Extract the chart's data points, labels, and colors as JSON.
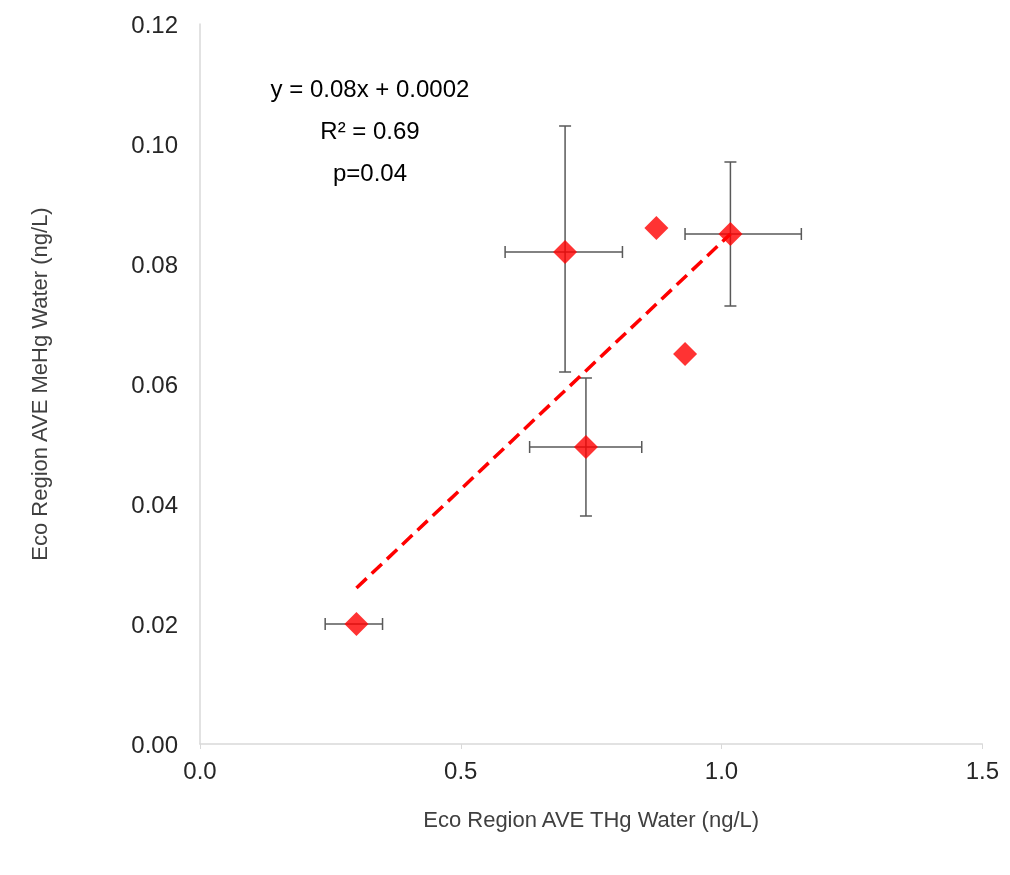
{
  "chart_data": {
    "type": "scatter",
    "xlabel": "Eco Region AVE THg Water (ng/L)",
    "ylabel": "Eco Region AVE MeHg Water (ng/L)",
    "xlim": [
      0,
      1.5
    ],
    "xticks": [
      {
        "value": 0,
        "label": "0.0"
      },
      {
        "value": 0.5,
        "label": "0.5"
      },
      {
        "value": 1,
        "label": "1.0"
      },
      {
        "value": 1.5,
        "label": "1.5"
      }
    ],
    "ylim": [
      0,
      0.12
    ],
    "yticks": [
      {
        "value": 0,
        "label": "0.00"
      },
      {
        "value": 0.02,
        "label": "0.02"
      },
      {
        "value": 0.04,
        "label": "0.04"
      },
      {
        "value": 0.06,
        "label": "0.06"
      },
      {
        "value": 0.08,
        "label": "0.08"
      },
      {
        "value": 0.1,
        "label": "0.10"
      },
      {
        "value": 0.12,
        "label": "0.12"
      }
    ],
    "grid": false,
    "marker": "diamond",
    "annotations": [
      "y = 0.08x + 0.0002",
      "R² = 0.69",
      "p=0.04"
    ],
    "series": [
      {
        "color": "#ff0000",
        "x": [
          0.3,
          0.7,
          0.875,
          1.017,
          0.93,
          0.74
        ],
        "values": [
          0.02,
          0.082,
          0.086,
          0.085,
          0.065,
          0.0495
        ],
        "errors": [
          null,
          [
            0.062,
            0.103
          ],
          null,
          [
            0.073,
            0.097
          ],
          null,
          [
            0.038,
            0.061
          ]
        ],
        "xerrors": [
          [
            0.24,
            0.35
          ],
          [
            0.585,
            0.81
          ],
          null,
          [
            0.93,
            1.153
          ],
          null,
          [
            0.632,
            0.847
          ]
        ]
      },
      {
        "type": "line",
        "color": "#ff0000",
        "line_style": "dashed",
        "marker": "none",
        "x": [
          0.3,
          1.017
        ],
        "values": [
          0.026,
          0.085
        ]
      }
    ]
  }
}
